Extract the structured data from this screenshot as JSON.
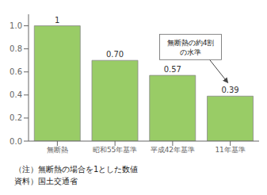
{
  "chart_data": {
    "type": "bar",
    "categories": [
      "無断熱",
      "昭和55年基準",
      "平成42年基準",
      "11年基準"
    ],
    "values": [
      1.0,
      0.7,
      0.57,
      0.39
    ],
    "value_labels": [
      "1",
      "0.70",
      "0.57",
      "0.39"
    ],
    "data_labels": true,
    "color": "#99cc66",
    "ylim": [
      0,
      1.1
    ],
    "yticks": [
      {
        "value": 0,
        "label": "0.0"
      },
      0.2,
      0.4,
      0.6,
      0.8,
      {
        "value": 1.0,
        "label": "1.0"
      }
    ],
    "grid": false,
    "annotations": [
      "無断熱の約4割\nの水準"
    ],
    "notes": [
      "（注）無断熱の場合を1とした数値",
      "資料）国土交通省"
    ]
  }
}
